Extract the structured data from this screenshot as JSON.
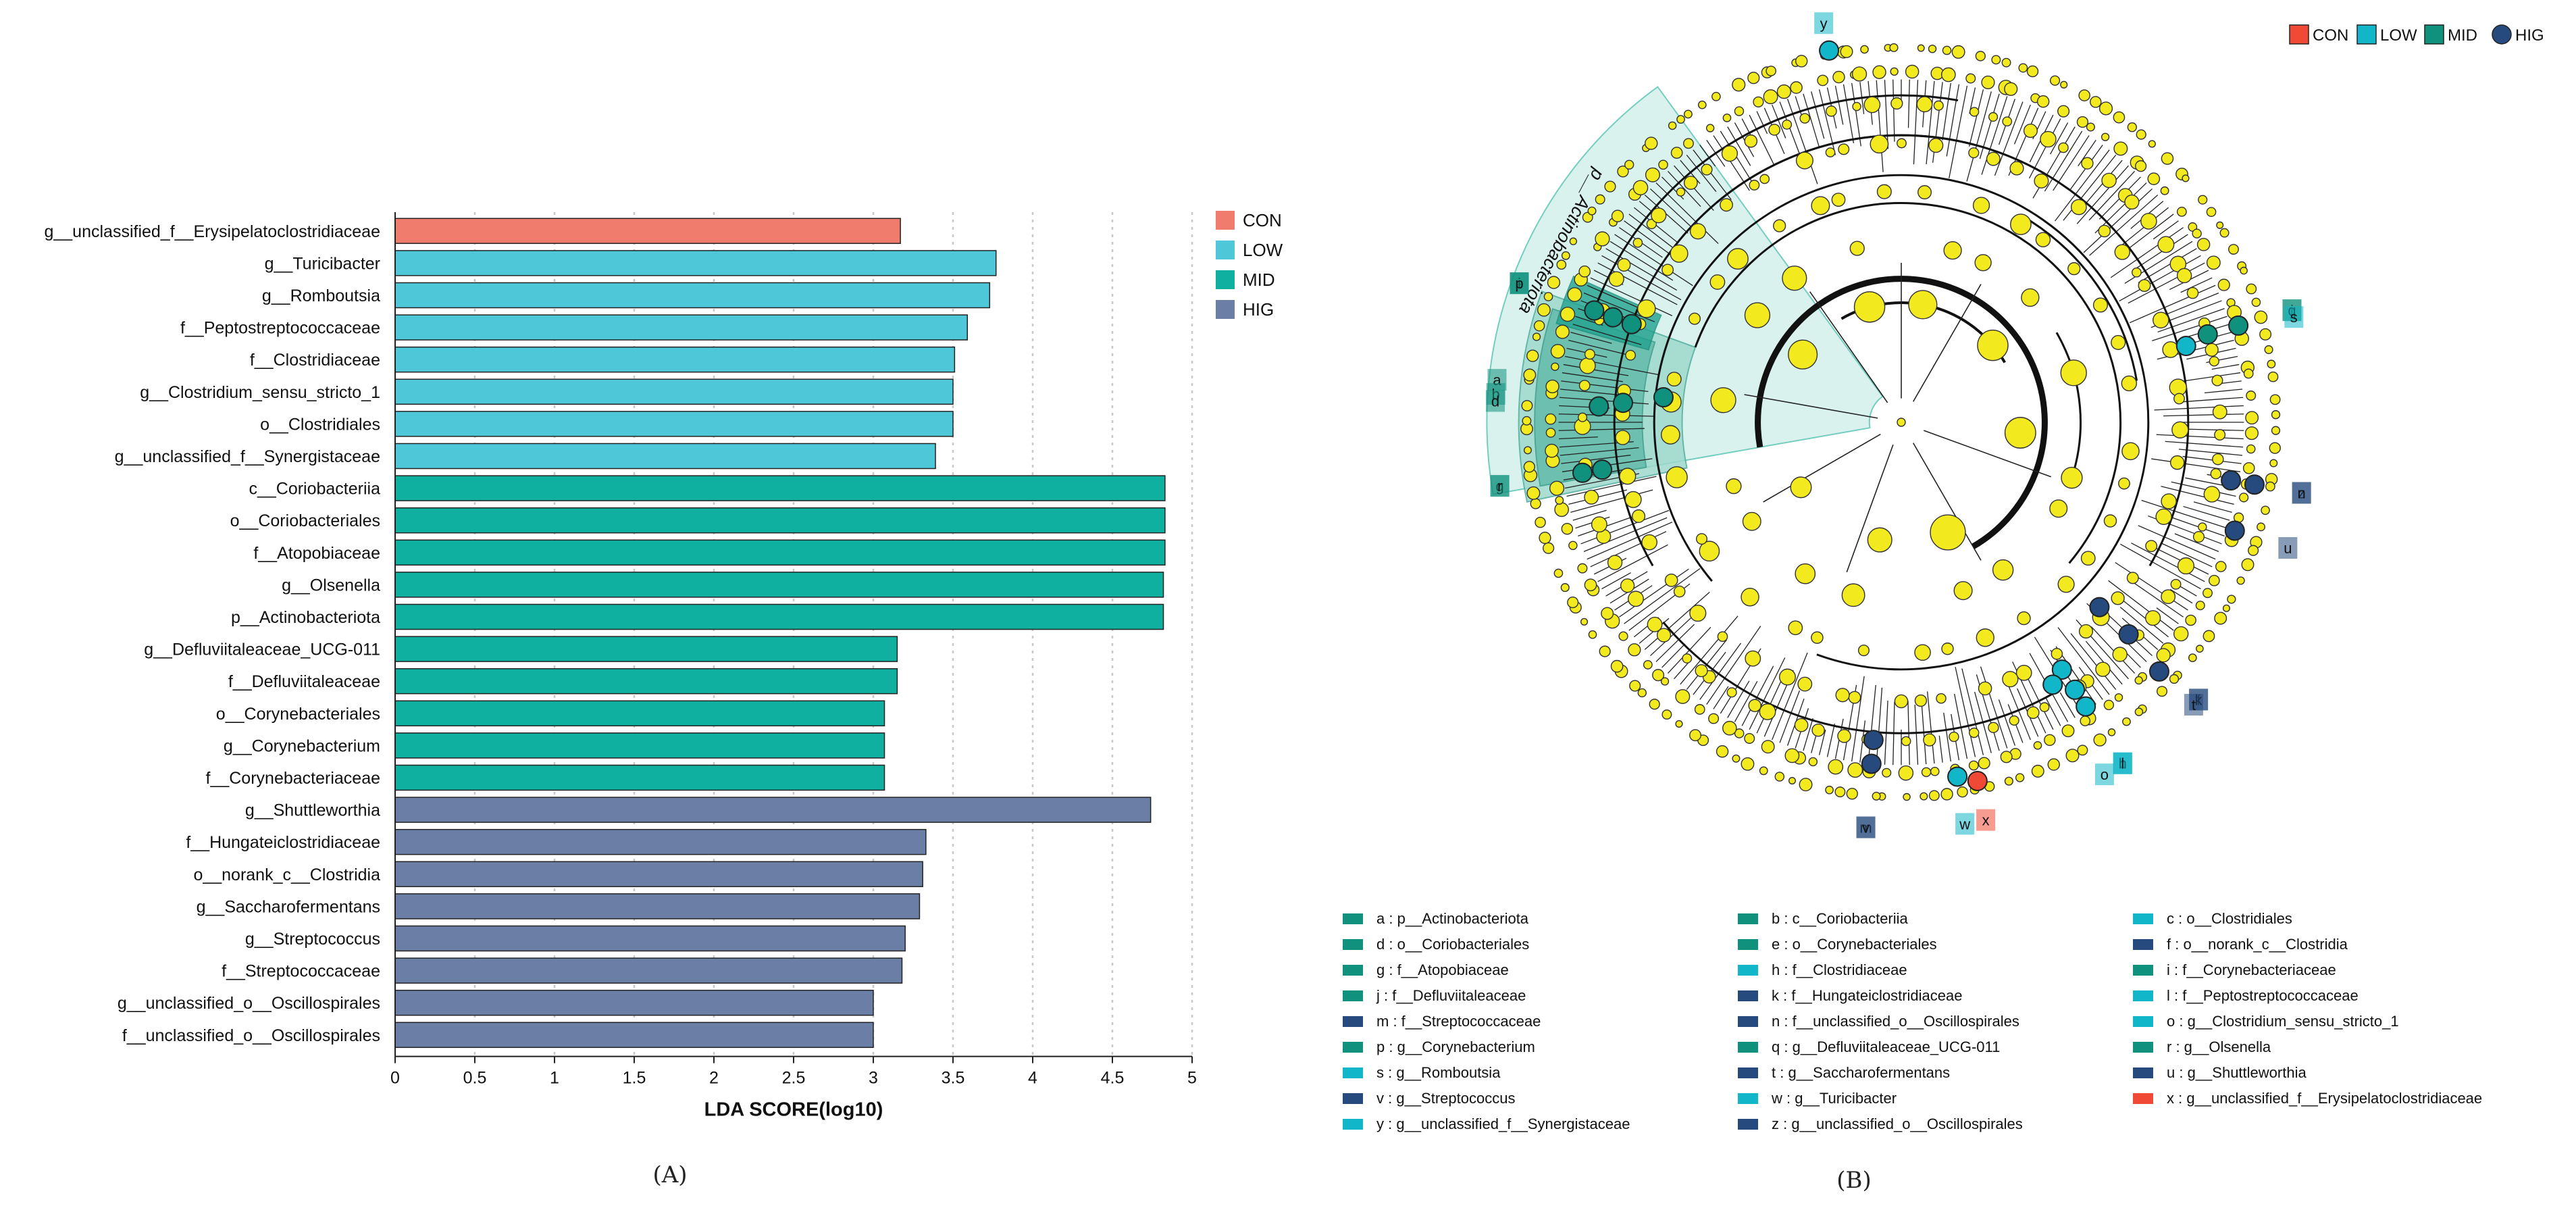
{
  "colors": {
    "CON": "#f07c6e",
    "LOW": "#4ec8d8",
    "MID": "#10b0a0",
    "HIG": "#6b7fa6",
    "node": "#f2ea1e"
  },
  "clad_colors": {
    "CON": "#f04a36",
    "LOW": "#12b6c9",
    "MID": "#10917d",
    "HIG": "#274a7e"
  },
  "panel_a_label": "(A)",
  "panel_b_label": "(B)",
  "chart_data": [
    {
      "type": "bar",
      "orientation": "horizontal",
      "xlabel": "LDA SCORE(log10)",
      "xlim": [
        0,
        5
      ],
      "xticks": [
        "0",
        "0.5",
        "1",
        "1.5",
        "2",
        "2.5",
        "3",
        "3.5",
        "4",
        "4.5",
        "5"
      ],
      "legend": [
        "CON",
        "LOW",
        "MID",
        "HIG"
      ],
      "legend_position": "top-right",
      "bars": [
        {
          "label": "g__unclassified_f__Erysipelatoclostridiaceae",
          "value": 3.17,
          "group": "CON"
        },
        {
          "label": "g__Turicibacter",
          "value": 3.77,
          "group": "LOW"
        },
        {
          "label": "g__Romboutsia",
          "value": 3.73,
          "group": "LOW"
        },
        {
          "label": "f__Peptostreptococcaceae",
          "value": 3.59,
          "group": "LOW"
        },
        {
          "label": "f__Clostridiaceae",
          "value": 3.51,
          "group": "LOW"
        },
        {
          "label": "g__Clostridium_sensu_stricto_1",
          "value": 3.5,
          "group": "LOW"
        },
        {
          "label": "o__Clostridiales",
          "value": 3.5,
          "group": "LOW"
        },
        {
          "label": "g__unclassified_f__Synergistaceae",
          "value": 3.39,
          "group": "LOW"
        },
        {
          "label": "c__Coriobacteriia",
          "value": 4.83,
          "group": "MID"
        },
        {
          "label": "o__Coriobacteriales",
          "value": 4.83,
          "group": "MID"
        },
        {
          "label": "f__Atopobiaceae",
          "value": 4.83,
          "group": "MID"
        },
        {
          "label": "g__Olsenella",
          "value": 4.82,
          "group": "MID"
        },
        {
          "label": "p__Actinobacteriota",
          "value": 4.82,
          "group": "MID"
        },
        {
          "label": "g__Defluviitaleaceae_UCG-011",
          "value": 3.15,
          "group": "MID"
        },
        {
          "label": "f__Defluviitaleaceae",
          "value": 3.15,
          "group": "MID"
        },
        {
          "label": "o__Corynebacteriales",
          "value": 3.07,
          "group": "MID"
        },
        {
          "label": "g__Corynebacterium",
          "value": 3.07,
          "group": "MID"
        },
        {
          "label": "f__Corynebacteriaceae",
          "value": 3.07,
          "group": "MID"
        },
        {
          "label": "g__Shuttleworthia",
          "value": 4.74,
          "group": "HIG"
        },
        {
          "label": "f__Hungateiclostridiaceae",
          "value": 3.33,
          "group": "HIG"
        },
        {
          "label": "o__norank_c__Clostridia",
          "value": 3.31,
          "group": "HIG"
        },
        {
          "label": "g__Saccharofermentans",
          "value": 3.29,
          "group": "HIG"
        },
        {
          "label": "g__Streptococcus",
          "value": 3.2,
          "group": "HIG"
        },
        {
          "label": "f__Streptococcaceae",
          "value": 3.18,
          "group": "HIG"
        },
        {
          "label": "g__unclassified_o__Oscillospirales",
          "value": 3.0,
          "group": "HIG"
        },
        {
          "label": "f__unclassified_o__Oscillospirales",
          "value": 3.0,
          "group": "HIG"
        }
      ]
    },
    {
      "type": "cladogram",
      "legend": [
        "CON",
        "LOW",
        "MID",
        "HIG"
      ],
      "legend_position": "top-right",
      "phylum_label": "p__Actinobacteriota",
      "markers": [
        {
          "letter": "a",
          "angle": 186,
          "radius": 0.6,
          "group": "MID"
        },
        {
          "letter": "b",
          "angle": 184,
          "radius": 0.7,
          "group": "MID"
        },
        {
          "letter": "d",
          "angle": 183,
          "radius": 0.76,
          "group": "MID"
        },
        {
          "letter": "g",
          "angle": 171,
          "radius": 0.81,
          "group": "MID"
        },
        {
          "letter": "r",
          "angle": 171,
          "radius": 0.76,
          "group": "MID"
        },
        {
          "letter": "e",
          "angle": 200,
          "radius": 0.82,
          "group": "MID"
        },
        {
          "letter": "i",
          "angle": 200,
          "radius": 0.77,
          "group": "MID"
        },
        {
          "letter": "p",
          "angle": 200,
          "radius": 0.72,
          "group": "MID"
        },
        {
          "letter": "j",
          "angle": 344,
          "radius": 0.88,
          "group": "MID"
        },
        {
          "letter": "q",
          "angle": 344,
          "radius": 0.8,
          "group": "MID"
        },
        {
          "letter": "y",
          "angle": 259,
          "radius": 0.95,
          "group": "LOW"
        },
        {
          "letter": "c",
          "angle": 57,
          "radius": 0.85,
          "group": "LOW"
        },
        {
          "letter": "h",
          "angle": 57,
          "radius": 0.8,
          "group": "LOW"
        },
        {
          "letter": "l",
          "angle": 57,
          "radius": 0.74,
          "group": "LOW"
        },
        {
          "letter": "o",
          "angle": 60,
          "radius": 0.76,
          "group": "LOW"
        },
        {
          "letter": "s",
          "angle": 345,
          "radius": 0.74,
          "group": "LOW"
        },
        {
          "letter": "w",
          "angle": 81,
          "radius": 0.9,
          "group": "LOW"
        },
        {
          "letter": "x",
          "angle": 78,
          "radius": 0.92,
          "group": "CON"
        },
        {
          "letter": "z",
          "angle": 10,
          "radius": 0.9,
          "group": "HIG"
        },
        {
          "letter": "n",
          "angle": 10,
          "radius": 0.84,
          "group": "HIG"
        },
        {
          "letter": "u",
          "angle": 18,
          "radius": 0.88,
          "group": "HIG"
        },
        {
          "letter": "f",
          "angle": 43,
          "radius": 0.68,
          "group": "HIG"
        },
        {
          "letter": "k",
          "angle": 43,
          "radius": 0.78,
          "group": "HIG"
        },
        {
          "letter": "t",
          "angle": 44,
          "radius": 0.9,
          "group": "HIG"
        },
        {
          "letter": "m",
          "angle": 95,
          "radius": 0.8,
          "group": "HIG"
        },
        {
          "letter": "v",
          "angle": 95,
          "radius": 0.86,
          "group": "HIG"
        }
      ],
      "legend_entries": [
        {
          "text": "a : p__Actinobacteriota",
          "group": "MID"
        },
        {
          "text": "b : c__Coriobacteriia",
          "group": "MID"
        },
        {
          "text": "c : o__Clostridiales",
          "group": "LOW"
        },
        {
          "text": "d : o__Coriobacteriales",
          "group": "MID"
        },
        {
          "text": "e : o__Corynebacteriales",
          "group": "MID"
        },
        {
          "text": "f : o__norank_c__Clostridia",
          "group": "HIG"
        },
        {
          "text": "g : f__Atopobiaceae",
          "group": "MID"
        },
        {
          "text": "h : f__Clostridiaceae",
          "group": "LOW"
        },
        {
          "text": "i : f__Corynebacteriaceae",
          "group": "MID"
        },
        {
          "text": "j : f__Defluviitaleaceae",
          "group": "MID"
        },
        {
          "text": "k : f__Hungateiclostridiaceae",
          "group": "HIG"
        },
        {
          "text": "l : f__Peptostreptococcaceae",
          "group": "LOW"
        },
        {
          "text": "m : f__Streptococcaceae",
          "group": "HIG"
        },
        {
          "text": "n : f__unclassified_o__Oscillospirales",
          "group": "HIG"
        },
        {
          "text": "o : g__Clostridium_sensu_stricto_1",
          "group": "LOW"
        },
        {
          "text": "p : g__Corynebacterium",
          "group": "MID"
        },
        {
          "text": "q : g__Defluviitaleaceae_UCG-011",
          "group": "MID"
        },
        {
          "text": "r : g__Olsenella",
          "group": "MID"
        },
        {
          "text": "s : g__Romboutsia",
          "group": "LOW"
        },
        {
          "text": "t : g__Saccharofermentans",
          "group": "HIG"
        },
        {
          "text": "u : g__Shuttleworthia",
          "group": "HIG"
        },
        {
          "text": "v : g__Streptococcus",
          "group": "HIG"
        },
        {
          "text": "w : g__Turicibacter",
          "group": "LOW"
        },
        {
          "text": "x : g__unclassified_f__Erysipelatoclostridiaceae",
          "group": "CON"
        },
        {
          "text": "y : g__unclassified_f__Synergistaceae",
          "group": "LOW"
        },
        {
          "text": "z : g__unclassified_o__Oscillospirales",
          "group": "HIG"
        }
      ]
    }
  ]
}
